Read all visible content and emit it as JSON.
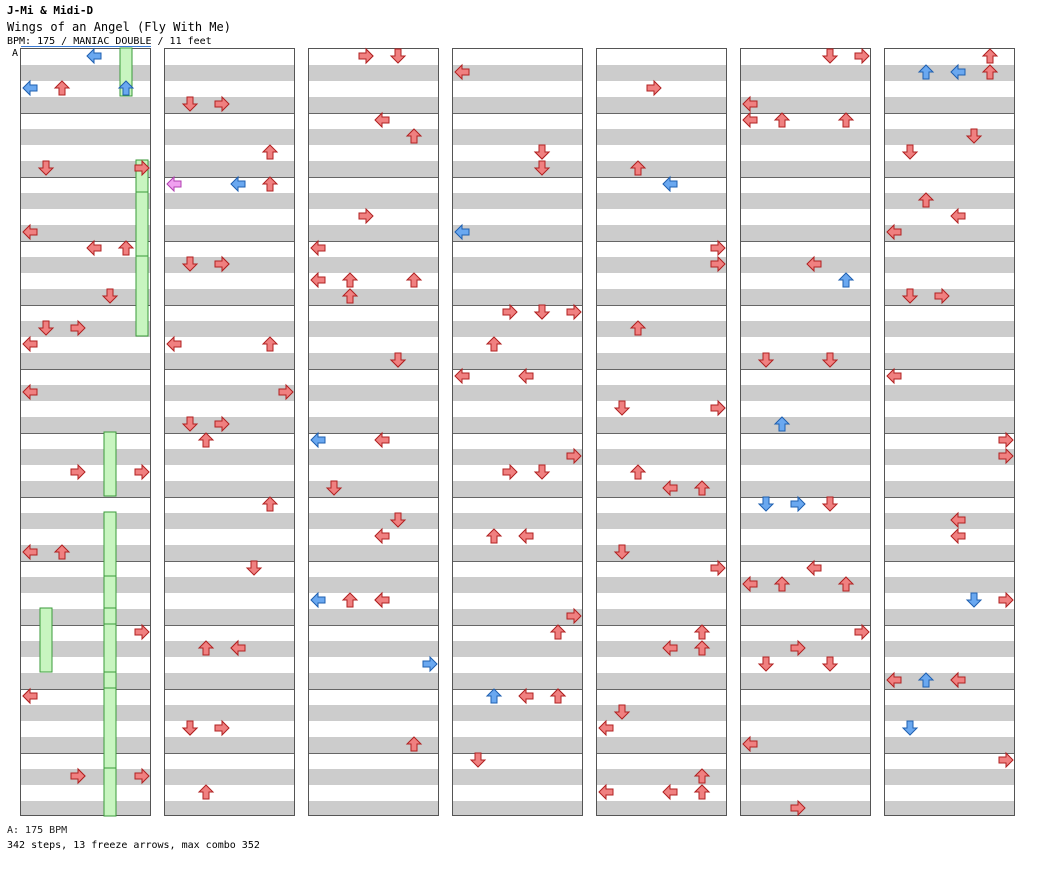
{
  "header": {
    "artist": "J-Mi & Midi-D",
    "title": "Wings of an Angel (Fly With Me)",
    "info": "BPM: 175 / MANIAC DOUBLE / 11 feet",
    "bpm_marker": "A"
  },
  "footer": {
    "bpm_summary": "A: 175 BPM",
    "totals": "342 steps, 13 freeze arrows, max combo 352"
  },
  "colors": {
    "quarter": "#f08080",
    "eighth": "#6aa8f0",
    "sixteenth": "#f0a0f0",
    "freeze": "#c8f5c0",
    "band": "#cccccc"
  },
  "chart_data": {
    "type": "step-chart",
    "columns": 7,
    "beats_per_column": 48,
    "lanes": [
      "P1-left",
      "P1-down",
      "P1-up",
      "P1-right",
      "P2-left",
      "P2-down",
      "P2-up",
      "P2-right"
    ],
    "notes": [
      [
        6,
        0,
        "q"
      ],
      [
        6,
        1,
        "q"
      ],
      [
        6,
        2,
        "q"
      ],
      [
        6,
        3,
        "q"
      ],
      [
        6,
        4,
        "q"
      ],
      [
        7,
        2,
        "q"
      ],
      [
        7,
        3,
        "e"
      ],
      [
        7,
        4,
        "e"
      ],
      [
        7,
        5,
        "q"
      ],
      [
        7,
        6,
        "q"
      ],
      [
        7,
        7,
        "q"
      ],
      [
        8,
        2,
        "q"
      ],
      [
        8,
        3,
        "q"
      ],
      [
        8,
        4,
        "q"
      ],
      [
        8,
        5,
        "q"
      ],
      [
        8,
        6,
        "q"
      ],
      [
        8,
        7,
        "q"
      ],
      [
        9,
        4,
        "q"
      ],
      [
        9,
        5,
        "q"
      ],
      [
        9,
        6,
        "e"
      ],
      [
        9,
        7,
        "e"
      ],
      [
        9,
        8,
        "q"
      ],
      [
        9,
        9,
        "q"
      ],
      [
        9,
        10,
        "q"
      ],
      [
        10,
        2,
        "q"
      ],
      [
        10,
        3,
        "e"
      ],
      [
        10,
        4,
        "e"
      ],
      [
        10,
        6,
        "q"
      ],
      [
        10,
        7,
        "q"
      ],
      [
        10,
        8,
        "q"
      ],
      [
        11,
        0,
        "q"
      ],
      [
        11,
        2,
        "q"
      ],
      [
        11,
        3,
        "q"
      ],
      [
        11,
        4,
        "q"
      ],
      [
        11,
        6,
        "e"
      ],
      [
        11,
        7,
        "q"
      ],
      [
        11,
        8,
        "q"
      ],
      [
        11,
        10,
        "q"
      ],
      [
        12,
        0,
        "q"
      ],
      [
        12,
        2,
        "q"
      ],
      [
        12,
        3,
        "q"
      ],
      [
        12,
        4,
        "e"
      ],
      [
        12,
        6,
        "q"
      ],
      [
        12,
        7,
        "q"
      ],
      [
        12,
        10,
        "q"
      ],
      [
        12,
        11,
        "q"
      ],
      [
        13,
        0,
        "q"
      ],
      [
        13,
        2,
        "q"
      ],
      [
        13,
        3,
        "q"
      ],
      [
        13,
        4,
        "q"
      ],
      [
        13,
        5,
        "q"
      ],
      [
        13,
        6,
        "e"
      ],
      [
        13,
        7,
        "q"
      ],
      [
        13,
        10,
        "q"
      ],
      [
        14,
        0,
        "q"
      ],
      [
        14,
        2,
        "q"
      ],
      [
        14,
        3,
        "q"
      ],
      [
        14,
        5,
        "q"
      ],
      [
        14,
        6,
        "e"
      ],
      [
        14,
        7,
        "e"
      ],
      [
        14,
        8,
        "q"
      ],
      [
        14,
        9,
        "q"
      ],
      [
        14,
        11,
        "q"
      ],
      [
        15,
        1,
        "q"
      ],
      [
        15,
        2,
        "q"
      ],
      [
        15,
        3,
        "q"
      ],
      [
        15,
        4,
        "q"
      ],
      [
        15,
        5,
        "q"
      ],
      [
        15,
        6,
        "q"
      ],
      [
        15,
        7,
        "q"
      ],
      [
        15,
        8,
        "q"
      ],
      [
        16,
        0,
        "q"
      ],
      [
        16,
        2,
        "q"
      ],
      [
        16,
        3,
        "q"
      ],
      [
        16,
        4,
        "q"
      ],
      [
        16,
        5,
        "q"
      ],
      [
        16,
        6,
        "q"
      ],
      [
        16,
        8,
        "q"
      ],
      [
        16,
        11,
        "q"
      ],
      [
        17,
        0,
        "q"
      ],
      [
        17,
        1,
        "q"
      ],
      [
        17,
        2,
        "q"
      ],
      [
        17,
        3,
        "q"
      ],
      [
        17,
        5,
        "q"
      ],
      [
        17,
        7,
        "q"
      ],
      [
        17,
        9,
        "q"
      ],
      [
        17,
        11,
        "q"
      ],
      [
        18,
        2,
        "q"
      ],
      [
        18,
        3,
        "q"
      ],
      [
        18,
        4,
        "q"
      ],
      [
        18,
        6,
        "q"
      ],
      [
        18,
        7,
        "q"
      ],
      [
        18,
        8,
        "q"
      ],
      [
        18,
        9,
        "q"
      ],
      [
        18,
        10,
        "q"
      ],
      [
        19,
        0,
        "e"
      ],
      [
        19,
        1,
        "e"
      ],
      [
        19,
        2,
        "q"
      ],
      [
        19,
        3,
        "q"
      ],
      [
        19,
        4,
        "q"
      ],
      [
        19,
        5,
        "e"
      ],
      [
        19,
        6,
        "q"
      ],
      [
        19,
        7,
        "q"
      ],
      [
        20,
        0,
        "q"
      ],
      [
        20,
        1,
        "q"
      ],
      [
        20,
        2,
        "q"
      ],
      [
        20,
        3,
        "q"
      ],
      [
        20,
        4,
        "q"
      ],
      [
        20,
        5,
        "q"
      ],
      [
        20,
        6,
        "q"
      ],
      [
        20,
        7,
        "q"
      ],
      [
        20,
        9,
        "q"
      ],
      [
        21,
        0,
        "q"
      ],
      [
        21,
        2,
        "q"
      ],
      [
        21,
        4,
        "q"
      ],
      [
        21,
        5,
        "e"
      ],
      [
        21,
        6,
        "q"
      ],
      [
        21,
        8,
        "q"
      ],
      [
        21,
        9,
        "q"
      ],
      [
        21,
        11,
        "q"
      ],
      [
        22,
        0,
        "q"
      ],
      [
        22,
        1,
        "q"
      ],
      [
        22,
        2,
        "q"
      ],
      [
        22,
        3,
        "q"
      ],
      [
        22,
        5,
        "e"
      ],
      [
        22,
        6,
        "q"
      ],
      [
        22,
        8,
        "q"
      ],
      [
        22,
        10,
        "q"
      ],
      [
        23,
        1,
        "q"
      ],
      [
        23,
        2,
        "q"
      ],
      [
        23,
        3,
        "q"
      ],
      [
        23,
        5,
        "q"
      ],
      [
        23,
        6,
        "q"
      ],
      [
        23,
        8,
        "e"
      ],
      [
        23,
        10,
        "q"
      ],
      [
        23,
        11,
        "q"
      ],
      [
        24,
        0,
        "q"
      ],
      [
        24,
        2,
        "q"
      ],
      [
        24,
        3,
        "q"
      ],
      [
        24,
        4,
        "e"
      ],
      [
        24,
        6,
        "e"
      ],
      [
        24,
        7,
        "s"
      ],
      [
        24,
        8,
        "q"
      ],
      [
        24,
        9,
        "q"
      ],
      [
        25,
        0,
        "q"
      ],
      [
        25,
        1,
        "q"
      ],
      [
        25,
        2,
        "q"
      ],
      [
        25,
        3,
        "q"
      ],
      [
        25,
        5,
        "q"
      ],
      [
        25,
        6,
        "q"
      ],
      [
        25,
        9,
        "q"
      ],
      [
        25,
        10,
        "q"
      ],
      [
        26,
        0,
        "q"
      ],
      [
        26,
        1,
        "q"
      ],
      [
        26,
        2,
        "q"
      ],
      [
        26,
        3,
        "e"
      ],
      [
        26,
        4,
        "q"
      ],
      [
        26,
        5,
        "q"
      ],
      [
        26,
        6,
        "q"
      ],
      [
        26,
        7,
        "q"
      ],
      [
        27,
        0,
        "q"
      ],
      [
        27,
        1,
        "q"
      ],
      [
        27,
        2,
        "q"
      ],
      [
        27,
        3,
        "q"
      ],
      [
        27,
        4,
        "q"
      ],
      [
        27,
        5,
        "q"
      ],
      [
        27,
        6,
        "q"
      ],
      [
        27,
        8,
        "q"
      ]
    ],
    "freezes": [
      [
        6,
        0,
        3,
        "q"
      ],
      [
        7,
        7,
        9,
        "q"
      ],
      [
        7,
        9,
        17,
        "q"
      ],
      [
        7,
        13,
        18,
        "q"
      ],
      [
        1,
        35,
        39,
        "q"
      ],
      [
        5,
        24,
        28,
        "q"
      ],
      [
        5,
        32,
        39,
        "q"
      ],
      [
        5,
        35,
        38,
        "q"
      ],
      [
        5,
        36,
        39,
        "q"
      ],
      [
        5,
        39,
        44,
        "q"
      ],
      [
        5,
        45,
        48,
        "q"
      ],
      [
        5,
        29,
        33,
        "q"
      ],
      [
        5,
        40,
        45,
        "q"
      ]
    ]
  }
}
